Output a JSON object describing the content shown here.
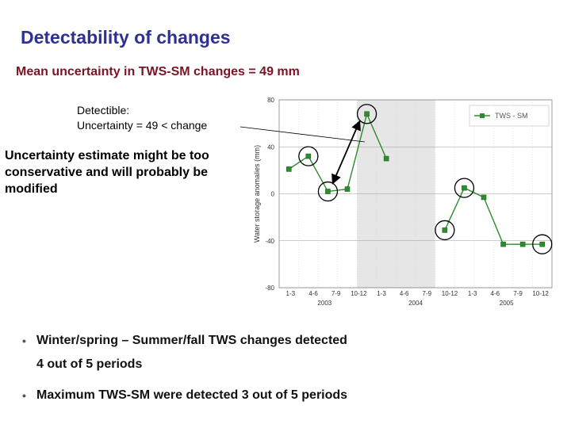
{
  "slide": {
    "title": "Detectability of changes",
    "subtitle": "Mean uncertainty in TWS-SM changes  = 49 mm",
    "detect_line1": "Detectible:",
    "detect_line2": "Uncertainty  = 49 < change",
    "note_line1": "Uncertainty estimate might be too",
    "note_line2": "conservative and will probably be",
    "note_line3": "modified",
    "bullet1_line1": "Winter/spring – Summer/fall TWS changes detected",
    "bullet1_line2": "4 out of 5 periods",
    "bullet2": "Maximum TWS-SM were detected 3 out of 5 periods"
  },
  "colors": {
    "title": "#2e3192",
    "subtitle": "#7a1424",
    "series": "#2e8b2e",
    "marker": "#1a6b1a",
    "shade": "#e6e6e6"
  },
  "chart_data": {
    "type": "line",
    "title": "",
    "xlabel": "",
    "ylabel": "Water storage anomalies (mm)",
    "ylim": [
      -80,
      80
    ],
    "yticks": [
      80,
      40,
      0,
      -40,
      -80
    ],
    "grid": true,
    "legend_position": "top-right",
    "categories": [
      "1-3",
      "4-6",
      "7-9",
      "10-12",
      "1-3",
      "4-6",
      "7-9",
      "10-12",
      "1-3",
      "4-6",
      "7-9",
      "10-12"
    ],
    "year_labels": [
      "2003",
      "2004",
      "2005"
    ],
    "shaded_range": [
      4,
      8
    ],
    "series": [
      {
        "name": "TWS - SM",
        "segments": [
          {
            "x": [
              0,
              1,
              2,
              3,
              4,
              5
            ],
            "y": [
              21,
              32,
              2,
              4,
              68,
              30
            ]
          },
          {
            "x": [
              8,
              9,
              10,
              11,
              12,
              13
            ],
            "y": [
              -31,
              5,
              -3,
              -43,
              -43,
              -43
            ]
          }
        ]
      }
    ],
    "circled_points": [
      {
        "x": 1,
        "y": 32
      },
      {
        "x": 2,
        "y": 2
      },
      {
        "x": 4,
        "y": 68
      },
      {
        "x": 8,
        "y": -31
      },
      {
        "x": 9,
        "y": 5
      },
      {
        "x": 13,
        "y": -43
      }
    ]
  }
}
